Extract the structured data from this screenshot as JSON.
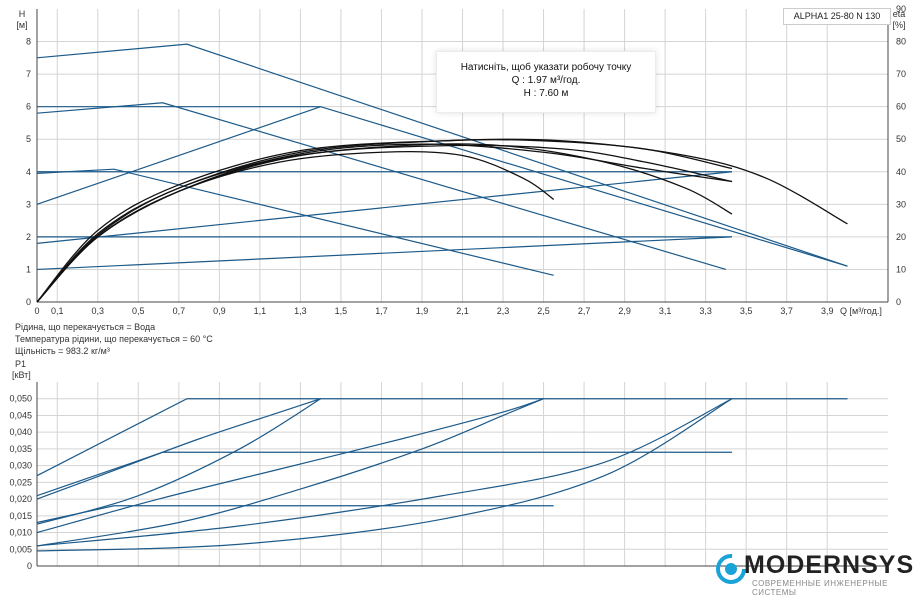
{
  "model_label": "ALPHA1 25-80 N 130",
  "tooltip": {
    "line1": "Натисніть, щоб указати робочу точку",
    "line2": "Q : 1.97 м³/год.",
    "line3": "H : 7.60 м"
  },
  "fluid_info": {
    "line1": "Рідина, що перекачується = Вода",
    "line2": "Температура рідини, що перекачується = 60 °C",
    "line3": "Щільність = 983.2 кг/м³"
  },
  "logo": {
    "name": "MODERNSYS",
    "subtitle": "СОВРЕМЕННЫЕ ИНЖЕНЕРНЫЕ СИСТЕМЫ"
  },
  "colors": {
    "curve": "#1c5a8a",
    "eta": "#111111",
    "logo_accent": "#1aa3d9"
  },
  "chart_data": [
    {
      "type": "line",
      "title": "",
      "xlabel": "Q [м³/год.]",
      "ylabel": "H [м]",
      "y2label": "eta [%]",
      "xlim": [
        0,
        4.2
      ],
      "ylim": [
        0,
        9
      ],
      "y2lim": [
        0,
        90
      ],
      "grid": true,
      "x_ticks": [
        "0",
        "0,1",
        "0,3",
        "0,5",
        "0,7",
        "0,9",
        "1,1",
        "1,3",
        "1,5",
        "1,7",
        "1,9",
        "2,1",
        "2,3",
        "2,5",
        "2,7",
        "2,9",
        "3,1",
        "3,3",
        "3,5",
        "3,7",
        "3,9"
      ],
      "x_tick_values": [
        0,
        0.1,
        0.3,
        0.5,
        0.7,
        0.9,
        1.1,
        1.3,
        1.5,
        1.7,
        1.9,
        2.1,
        2.3,
        2.5,
        2.7,
        2.9,
        3.1,
        3.3,
        3.5,
        3.7,
        3.9
      ],
      "y_ticks": [
        "0",
        "1",
        "2",
        "3",
        "4",
        "5",
        "6",
        "7",
        "8"
      ],
      "y_tick_values": [
        0,
        1,
        2,
        3,
        4,
        5,
        6,
        7,
        8
      ],
      "y2_ticks": [
        "0",
        "10",
        "20",
        "30",
        "40",
        "50",
        "60",
        "70",
        "80",
        "90"
      ],
      "y2_tick_values": [
        0,
        10,
        20,
        30,
        40,
        50,
        60,
        70,
        80,
        90
      ],
      "series": [
        {
          "values": [
            [
              0,
              7.5
            ],
            [
              0.74,
              7.92
            ],
            [
              4.0,
              1.1
            ]
          ]
        },
        {
          "values": [
            [
              0,
              5.8
            ],
            [
              0.62,
              6.12
            ],
            [
              3.4,
              1.0
            ]
          ]
        },
        {
          "values": [
            [
              0,
              3.95
            ],
            [
              0.38,
              4.08
            ],
            [
              2.55,
              0.82
            ]
          ]
        },
        {
          "values": [
            [
              0,
              6.0
            ],
            [
              1.4,
              6.0
            ],
            [
              4.0,
              1.1
            ]
          ]
        },
        {
          "values": [
            [
              0,
              4.0
            ],
            [
              3.43,
              4.0
            ]
          ]
        },
        {
          "values": [
            [
              0,
              2.0
            ],
            [
              3.43,
              2.0
            ]
          ]
        },
        {
          "values": [
            [
              0,
              3.0
            ],
            [
              1.4,
              6.0
            ]
          ]
        },
        {
          "values": [
            [
              0,
              1.8
            ],
            [
              3.43,
              4.0
            ]
          ]
        },
        {
          "values": [
            [
              0,
              1.0
            ],
            [
              3.43,
              2.0
            ]
          ]
        },
        {
          "values": [
            [
              0,
              0
            ],
            [
              0.3,
              20
            ],
            [
              0.7,
              34
            ],
            [
              1.2,
              43
            ],
            [
              1.7,
              46
            ],
            [
              2.1,
              45
            ],
            [
              2.4,
              38
            ],
            [
              2.55,
              31.5
            ]
          ]
        },
        {
          "values": [
            [
              0,
              0
            ],
            [
              0.3,
              20
            ],
            [
              0.7,
              34
            ],
            [
              1.2,
              44
            ],
            [
              1.8,
              48
            ],
            [
              2.3,
              48
            ],
            [
              2.8,
              43
            ],
            [
              3.2,
              35
            ],
            [
              3.43,
              27
            ]
          ]
        },
        {
          "values": [
            [
              0,
              0
            ],
            [
              0.3,
              20
            ],
            [
              0.7,
              34
            ],
            [
              1.3,
              45
            ],
            [
              2.0,
              48
            ],
            [
              2.6,
              47
            ],
            [
              3.0,
              43
            ],
            [
              3.43,
              37
            ]
          ]
        },
        {
          "values": [
            [
              0,
              0
            ],
            [
              0.3,
              21
            ],
            [
              0.7,
              35
            ],
            [
              1.3,
              46
            ],
            [
              2.0,
              49.5
            ],
            [
              2.5,
              49.5
            ],
            [
              3.0,
              47
            ],
            [
              3.43,
              41
            ]
          ]
        },
        {
          "values": [
            [
              0,
              0
            ],
            [
              0.3,
              20.5
            ],
            [
              0.7,
              35
            ],
            [
              1.3,
              45.5
            ],
            [
              1.9,
              48.5
            ],
            [
              2.5,
              46
            ],
            [
              3.0,
              41
            ],
            [
              3.43,
              37
            ]
          ]
        },
        {
          "values": [
            [
              0,
              0
            ],
            [
              0.3,
              22
            ],
            [
              0.7,
              36
            ],
            [
              1.3,
              46.5
            ],
            [
              2.0,
              49.5
            ],
            [
              2.6,
              49.5
            ],
            [
              3.2,
              45
            ],
            [
              3.6,
              38
            ],
            [
              4.0,
              24
            ]
          ]
        }
      ]
    },
    {
      "type": "line",
      "title": "",
      "xlabel": "",
      "ylabel": "P1 [кВт]",
      "xlim": [
        0,
        4.2
      ],
      "ylim": [
        0,
        0.055
      ],
      "grid": true,
      "y_ticks": [
        "0",
        "0,005",
        "0,010",
        "0,015",
        "0,020",
        "0,025",
        "0,030",
        "0,035",
        "0,040",
        "0,045",
        "0,050"
      ],
      "y_tick_values": [
        0,
        0.005,
        0.01,
        0.015,
        0.02,
        0.025,
        0.03,
        0.035,
        0.04,
        0.045,
        0.05
      ],
      "series": [
        {
          "values": [
            [
              0,
              0.027
            ],
            [
              0.74,
              0.05
            ],
            [
              4.0,
              0.05
            ]
          ]
        },
        {
          "values": [
            [
              0,
              0.021
            ],
            [
              0.62,
              0.034
            ],
            [
              3.43,
              0.034
            ]
          ]
        },
        {
          "values": [
            [
              0,
              0.013
            ],
            [
              0.38,
              0.018
            ],
            [
              2.55,
              0.018
            ]
          ]
        },
        {
          "values": [
            [
              0,
              0.02
            ],
            [
              0.4,
              0.029
            ],
            [
              0.8,
              0.038
            ],
            [
              1.2,
              0.046
            ],
            [
              1.4,
              0.05
            ]
          ]
        },
        {
          "values": [
            [
              0,
              0.0125
            ],
            [
              0.5,
              0.021
            ],
            [
              1.0,
              0.035
            ],
            [
              1.4,
              0.05
            ]
          ]
        },
        {
          "values": [
            [
              0,
              0.01
            ],
            [
              0.6,
              0.02
            ],
            [
              1.2,
              0.029
            ],
            [
              1.8,
              0.038
            ],
            [
              2.3,
              0.046
            ],
            [
              2.5,
              0.05
            ]
          ]
        },
        {
          "values": [
            [
              0,
              0.006
            ],
            [
              0.7,
              0.013
            ],
            [
              1.3,
              0.023
            ],
            [
              1.9,
              0.035
            ],
            [
              2.3,
              0.045
            ],
            [
              2.5,
              0.05
            ]
          ]
        },
        {
          "values": [
            [
              0,
              0.006
            ],
            [
              1.0,
              0.012
            ],
            [
              2.0,
              0.021
            ],
            [
              2.8,
              0.031
            ],
            [
              3.43,
              0.05
            ]
          ]
        },
        {
          "values": [
            [
              0,
              0.0045
            ],
            [
              1.0,
              0.0065
            ],
            [
              2.0,
              0.014
            ],
            [
              2.8,
              0.027
            ],
            [
              3.43,
              0.05
            ]
          ]
        }
      ]
    }
  ]
}
